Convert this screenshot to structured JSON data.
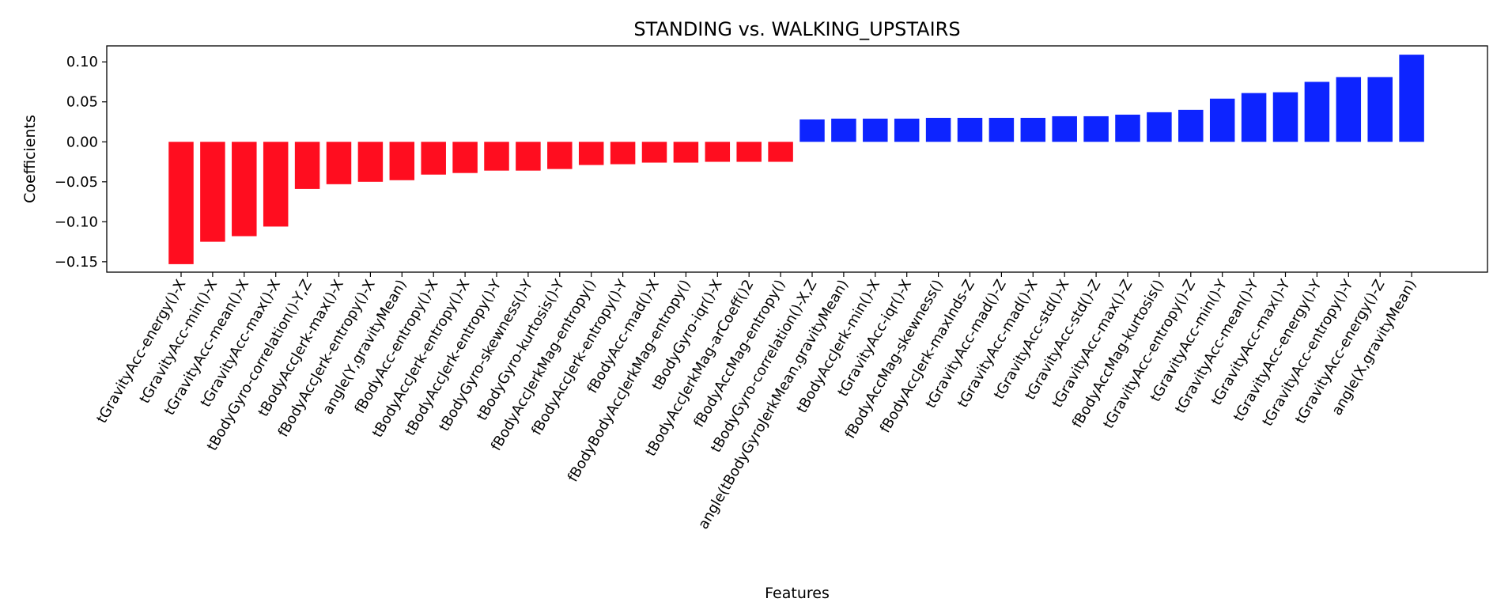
{
  "chart_data": {
    "type": "bar",
    "title": "STANDING vs. WALKING_UPSTAIRS",
    "xlabel": "Features",
    "ylabel": "Coefficients",
    "ylim": [
      -0.163,
      0.12
    ],
    "yticks": [
      {
        "value": 0.1,
        "label": "0.10"
      },
      {
        "value": 0.05,
        "label": "0.05"
      },
      {
        "value": 0.0,
        "label": "0.00"
      },
      {
        "value": -0.05,
        "label": "−0.05"
      },
      {
        "value": -0.1,
        "label": "−0.10"
      },
      {
        "value": -0.15,
        "label": "−0.15"
      }
    ],
    "grid": false,
    "colors": {
      "negative": "#ff0d1f",
      "positive": "#0d24ff"
    },
    "categories": [
      "tGravityAcc-energy()-X",
      "tGravityAcc-min()-X",
      "tGravityAcc-mean()-X",
      "tGravityAcc-max()-X",
      "tBodyGyro-correlation()-Y,Z",
      "tBodyAccJerk-max()-X",
      "fBodyAccJerk-entropy()-X",
      "angle(Y,gravityMean)",
      "fBodyAcc-entropy()-X",
      "tBodyAccJerk-entropy()-X",
      "tBodyAccJerk-entropy()-Y",
      "tBodyGyro-skewness()-Y",
      "tBodyGyro-kurtosis()-Y",
      "fBodyAccJerkMag-entropy()",
      "fBodyAccJerk-entropy()-Y",
      "fBodyAcc-mad()-X",
      "fBodyBodyAccJerkMag-entropy()",
      "tBodyGyro-iqr()-X",
      "tBodyAccJerkMag-arCoeff()2",
      "fBodyAccMag-entropy()",
      "tBodyGyro-correlation()-X,Z",
      "angle(tBodyGyroJerkMean,gravityMean)",
      "tBodyAccJerk-min()-X",
      "tGravityAcc-iqr()-X",
      "fBodyAccMag-skewness()",
      "fBodyAccJerk-maxInds-Z",
      "tGravityAcc-mad()-Z",
      "tGravityAcc-mad()-X",
      "tGravityAcc-std()-X",
      "tGravityAcc-std()-Z",
      "tGravityAcc-max()-Z",
      "fBodyAccMag-kurtosis()",
      "tGravityAcc-entropy()-Z",
      "tGravityAcc-min()-Y",
      "tGravityAcc-mean()-Y",
      "tGravityAcc-max()-Y",
      "tGravityAcc-energy()-Y",
      "tGravityAcc-entropy()-Y",
      "tGravityAcc-energy()-Z",
      "angle(X,gravityMean)"
    ],
    "values": [
      -0.153,
      -0.125,
      -0.118,
      -0.106,
      -0.059,
      -0.053,
      -0.05,
      -0.048,
      -0.041,
      -0.039,
      -0.036,
      -0.036,
      -0.034,
      -0.029,
      -0.028,
      -0.026,
      -0.026,
      -0.025,
      -0.025,
      -0.025,
      0.028,
      0.029,
      0.029,
      0.029,
      0.03,
      0.03,
      0.03,
      0.03,
      0.032,
      0.032,
      0.034,
      0.037,
      0.04,
      0.054,
      0.061,
      0.062,
      0.075,
      0.081,
      0.081,
      0.109
    ]
  }
}
